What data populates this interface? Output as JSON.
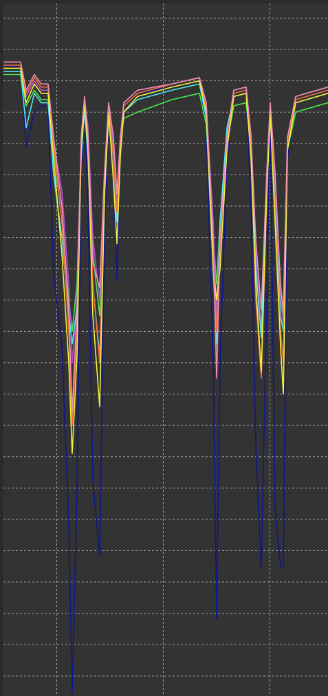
{
  "chart_data": {
    "type": "line",
    "x": [
      0,
      1.61,
      2.13,
      2.9,
      3.55,
      4.19,
      4.71,
      5.48,
      6.13,
      6.45,
      6.9,
      7.29,
      7.61,
      7.94,
      8.39,
      9.03,
      9.48,
      9.87,
      10.32,
      10.65,
      10.97,
      11.29,
      12.58,
      15.81,
      18.39,
      19.03,
      19.68,
      20,
      20.32,
      20.97,
      21.61,
      22.77,
      23.23,
      23.68,
      24.19,
      24.71,
      25.03,
      25.48,
      26,
      26.26,
      26.65,
      27.42,
      30.45
    ],
    "series": [
      {
        "color": "#10168c",
        "values": [
          19.5,
          19.4,
          16.9,
          18.0,
          18.2,
          18.2,
          12.8,
          10.6,
          4.9,
          -0.57,
          6.0,
          16.0,
          18.3,
          15.0,
          6.2,
          3.8,
          14.0,
          18.0,
          16.0,
          12.6,
          16.5,
          18.2,
          18.6,
          18.8,
          19.0,
          17.5,
          10.0,
          1.8,
          10.0,
          16.5,
          18.5,
          18.6,
          15.0,
          7.3,
          3.4,
          12.0,
          18.0,
          5.4,
          3.5,
          3.5,
          16.5,
          18.3,
          18.6
        ]
      },
      {
        "color": "#49e84a",
        "values": [
          19.2,
          19.2,
          18.2,
          18.7,
          18.4,
          18.4,
          16.8,
          14.5,
          12.0,
          11.0,
          12.5,
          16.8,
          18.0,
          16.8,
          13.5,
          11.5,
          15.8,
          17.8,
          16.8,
          15.0,
          17.0,
          17.8,
          18.0,
          18.4,
          18.6,
          17.6,
          14.0,
          12.5,
          14.5,
          17.0,
          18.2,
          18.3,
          16.8,
          13.5,
          11.0,
          15.5,
          17.8,
          15.5,
          12.5,
          11.5,
          16.8,
          18.0,
          18.3
        ]
      },
      {
        "color": "#b44fd8",
        "values": [
          19.5,
          19.5,
          18.5,
          19.0,
          18.7,
          18.7,
          17.0,
          15.5,
          12.5,
          10.0,
          12.0,
          17.0,
          18.4,
          17.5,
          14.0,
          12.0,
          16.0,
          18.2,
          17.0,
          15.0,
          17.0,
          18.2,
          18.6,
          18.9,
          19.1,
          18.2,
          14.5,
          11.5,
          14.5,
          17.2,
          18.7,
          18.8,
          17.3,
          13.5,
          11.0,
          16.0,
          18.3,
          15.8,
          12.0,
          11.3,
          17.2,
          18.5,
          18.8
        ]
      },
      {
        "color": "#4ee8f0",
        "values": [
          19.3,
          19.3,
          17.5,
          18.6,
          18.3,
          18.3,
          16.0,
          14.0,
          11.5,
          10.6,
          11.8,
          16.5,
          18.2,
          16.5,
          12.5,
          10.2,
          15.5,
          17.8,
          16.5,
          14.5,
          16.8,
          18.0,
          18.4,
          18.7,
          18.9,
          17.8,
          13.0,
          10.6,
          14.5,
          17.5,
          18.5,
          18.6,
          16.8,
          13.0,
          10.8,
          15.8,
          18.0,
          15.0,
          11.5,
          11.0,
          17.0,
          18.3,
          18.6
        ]
      },
      {
        "color": "#f26a3a",
        "values": [
          19.5,
          19.5,
          18.6,
          19.1,
          18.8,
          18.8,
          17.0,
          14.5,
          11.0,
          8.0,
          11.0,
          17.0,
          18.4,
          17.0,
          12.5,
          10.0,
          15.8,
          18.2,
          16.5,
          14.8,
          17.0,
          18.2,
          18.6,
          18.9,
          19.1,
          18.0,
          13.5,
          11.0,
          13.8,
          17.0,
          18.6,
          18.7,
          16.8,
          12.0,
          9.5,
          15.5,
          18.2,
          14.8,
          11.0,
          10.0,
          17.0,
          18.4,
          18.7
        ]
      },
      {
        "color": "#f2f23a",
        "values": [
          19.4,
          19.4,
          18.3,
          18.9,
          18.6,
          18.6,
          16.5,
          13.5,
          10.0,
          7.1,
          10.2,
          16.8,
          18.3,
          16.8,
          11.5,
          8.6,
          15.3,
          18.0,
          15.8,
          13.8,
          16.6,
          18.0,
          18.5,
          18.8,
          19.0,
          18.0,
          13.0,
          12.0,
          13.0,
          16.8,
          18.5,
          18.6,
          16.5,
          12.5,
          9.7,
          15.5,
          18.0,
          14.5,
          10.5,
          9.0,
          16.8,
          18.3,
          18.6
        ]
      },
      {
        "color": "#f08fb0",
        "values": [
          19.6,
          19.6,
          18.7,
          19.2,
          18.9,
          18.9,
          17.2,
          15.0,
          11.7,
          8.4,
          11.7,
          17.2,
          18.5,
          17.2,
          13.2,
          12.4,
          16.1,
          18.3,
          17.2,
          15.4,
          17.2,
          18.3,
          18.7,
          18.9,
          19.1,
          18.3,
          13.9,
          9.5,
          13.9,
          17.2,
          18.7,
          18.8,
          17.2,
          13.9,
          11.7,
          16.1,
          18.3,
          16.1,
          12.4,
          11.7,
          17.2,
          18.5,
          18.8
        ]
      }
    ],
    "xlim": [
      0,
      30.45
    ],
    "ylim": [
      -0.64,
      21.47
    ],
    "xticks": [
      5,
      15,
      25
    ],
    "yticks": [
      0,
      1,
      2,
      3,
      4,
      5,
      6,
      7,
      8,
      9,
      10,
      11,
      12,
      13,
      14,
      15,
      16,
      17,
      18,
      19,
      20,
      21
    ],
    "grid": true
  }
}
